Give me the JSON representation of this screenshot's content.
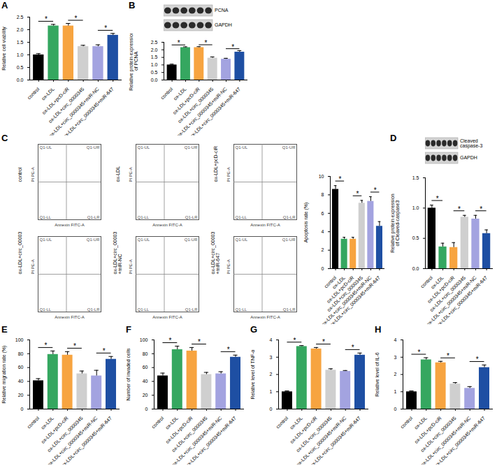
{
  "chart_data": [
    {
      "type": "bar",
      "title": "A",
      "categories": [
        "control",
        "ox-LDL",
        "ox-LDL+pcD-ciR",
        "ox-LDL+circ_0000345",
        "ox-LDL+circ_0000345+miR-NC",
        "ox-LDL+circ_0000345+miR-647"
      ],
      "values": [
        1.0,
        2.15,
        2.15,
        1.33,
        1.33,
        1.78
      ],
      "errors": [
        0.05,
        0.06,
        0.1,
        0.05,
        0.07,
        0.07
      ],
      "colors": [
        "#000000",
        "#35a760",
        "#f7a440",
        "#cfcfcf",
        "#a3a3e0",
        "#1e4fa3"
      ],
      "ylabel": "Relative cell viability",
      "ylim": [
        0,
        2.5
      ],
      "yticks": [
        {
          "value": 0,
          "label": "0.0"
        },
        0.5,
        {
          "value": 1,
          "label": "1.0"
        },
        1.5,
        {
          "value": 2,
          "label": "2.0"
        },
        2.5
      ],
      "annotations": [
        {
          "from": "control",
          "to": "ox-LDL",
          "label": "*"
        },
        {
          "from": "ox-LDL+pcD-ciR",
          "to": "ox-LDL+circ_0000345",
          "label": "*"
        },
        {
          "from": "ox-LDL+circ_0000345+miR-NC",
          "to": "ox-LDL+circ_0000345+miR-647",
          "label": "*"
        }
      ]
    },
    {
      "type": "bar",
      "title": "B",
      "blot": {
        "bands": [
          "PCNA",
          "GAPDH"
        ]
      },
      "categories": [
        "control",
        "ox-LDL",
        "ox-LDL+pcD-ciR",
        "ox-LDL+circ_0000345",
        "ox-LDL+circ_0000345+miR-NC",
        "ox-LDL+circ_0000345+miR-647"
      ],
      "values": [
        1.0,
        2.15,
        2.15,
        1.45,
        1.38,
        1.85
      ],
      "errors": [
        0.05,
        0.05,
        0.06,
        0.08,
        0.06,
        0.1
      ],
      "colors": [
        "#000000",
        "#35a760",
        "#f7a440",
        "#cfcfcf",
        "#a3a3e0",
        "#1e4fa3"
      ],
      "ylabel": "Relative protein expression\nof PCNA",
      "ylim": [
        0,
        2.5
      ],
      "yticks": [
        {
          "value": 0,
          "label": "0.0"
        },
        0.5,
        {
          "value": 1,
          "label": "1.0"
        },
        1.5,
        {
          "value": 2,
          "label": "2.0"
        },
        2.5
      ],
      "annotations": [
        {
          "from": "control",
          "to": "ox-LDL",
          "label": "*"
        },
        {
          "from": "ox-LDL+pcD-ciR",
          "to": "ox-LDL+circ_0000345",
          "label": "*"
        },
        {
          "from": "ox-LDL+circ_0000345+miR-NC",
          "to": "ox-LDL+circ_0000345+miR-647",
          "label": "*"
        }
      ]
    },
    {
      "type": "flow_cytometry",
      "title": "C",
      "panels": [
        "control",
        "ox-LDL",
        "ox-LDL+pcD-ciR",
        "ox-LDL+circ_0000345",
        "ox-LDL+circ_0000345\n+miR-NC",
        "ox-LDL+circ_0000345\n+miR-647"
      ],
      "xlabel": "Annexin FITC-A",
      "ylabel": "PI PE-A",
      "quadrants": {
        "UL": "Q1-UL",
        "UR": "Q1-UR",
        "LL": "Q1-LL",
        "LR": "Q1-LR"
      },
      "tick_labels": false
    },
    {
      "type": "bar",
      "categories": [
        "control",
        "ox-LDL",
        "ox-LDL+pcD-ciR",
        "ox-LDL+circ_0000345",
        "ox-LDL+circ_0000345+miR-NC",
        "ox-LDL+circ_0000345+miR-647"
      ],
      "values": [
        8.6,
        3.2,
        3.2,
        7.1,
        7.3,
        4.6
      ],
      "errors": [
        0.4,
        0.2,
        0.2,
        0.3,
        0.5,
        0.5
      ],
      "colors": [
        "#000000",
        "#35a760",
        "#f7a440",
        "#cfcfcf",
        "#a3a3e0",
        "#1e4fa3"
      ],
      "ylabel": "Apoptosis rate (%)",
      "ylim": [
        0,
        10
      ],
      "yticks": [
        0,
        2,
        4,
        6,
        8,
        10
      ],
      "annotations": [
        {
          "from": "control",
          "to": "ox-LDL",
          "label": "*"
        },
        {
          "from": "ox-LDL+pcD-ciR",
          "to": "ox-LDL+circ_0000345",
          "label": "*"
        },
        {
          "from": "ox-LDL+circ_0000345+miR-NC",
          "to": "ox-LDL+circ_0000345+miR-647",
          "label": "*"
        }
      ]
    },
    {
      "type": "bar",
      "title": "D",
      "blot": {
        "bands": [
          "Cleaved\ncaspase-3",
          "GAPDH"
        ]
      },
      "categories": [
        "control",
        "ox-LDL",
        "ox-LDL+pcD-ciR",
        "ox-LDL+circ_0000345",
        "ox-LDL+circ_0000345+miR-NC",
        "ox-LDL+circ_0000345+miR-647"
      ],
      "values": [
        1.0,
        0.36,
        0.35,
        0.85,
        0.82,
        0.58
      ],
      "errors": [
        0.05,
        0.06,
        0.08,
        0.03,
        0.06,
        0.06
      ],
      "colors": [
        "#000000",
        "#35a760",
        "#f7a440",
        "#cfcfcf",
        "#a3a3e0",
        "#1e4fa3"
      ],
      "ylabel": "Relative protein expression\nof Cleaved-caspase3",
      "ylim": [
        0,
        1.5
      ],
      "yticks": [
        {
          "value": 0,
          "label": "0.0"
        },
        0.5,
        {
          "value": 1,
          "label": "1.0"
        },
        1.5
      ],
      "annotations": [
        {
          "from": "control",
          "to": "ox-LDL",
          "label": "*"
        },
        {
          "from": "ox-LDL+pcD-ciR",
          "to": "ox-LDL+circ_0000345",
          "label": "*"
        },
        {
          "from": "ox-LDL+circ_0000345+miR-NC",
          "to": "ox-LDL+circ_0000345+miR-647",
          "label": "*"
        }
      ]
    },
    {
      "type": "bar",
      "title": "E",
      "categories": [
        "control",
        "ox-LDL",
        "ox-LDL+pcD-ciR",
        "ox-LDL+circ_0000345",
        "ox-LDL+circ_0000345+miR-NC",
        "ox-LDL+circ_0000345+miR-647"
      ],
      "values": [
        41,
        79,
        78,
        51,
        48,
        72
      ],
      "errors": [
        3,
        5,
        5,
        4,
        8,
        4
      ],
      "colors": [
        "#000000",
        "#35a760",
        "#f7a440",
        "#cfcfcf",
        "#a3a3e0",
        "#1e4fa3"
      ],
      "ylabel": "Relative migration rate (%)",
      "ylim": [
        0,
        100
      ],
      "yticks": [
        0,
        20,
        40,
        60,
        80,
        100
      ],
      "annotations": [
        {
          "from": "control",
          "to": "ox-LDL",
          "label": "*"
        },
        {
          "from": "ox-LDL+pcD-ciR",
          "to": "ox-LDL+circ_0000345",
          "label": "*"
        },
        {
          "from": "ox-LDL+circ_0000345+miR-NC",
          "to": "ox-LDL+circ_0000345+miR-647",
          "label": "*"
        }
      ]
    },
    {
      "type": "bar",
      "title": "F",
      "categories": [
        "control",
        "ox-LDL",
        "ox-LDL+pcD-ciR",
        "ox-LDL+circ_0000345",
        "ox-LDL+circ_0000345+miR-NC",
        "ox-LDL+circ_0000345+miR-647"
      ],
      "values": [
        48,
        86,
        84,
        50,
        51,
        75
      ],
      "errors": [
        4,
        5,
        5,
        3,
        3,
        3
      ],
      "colors": [
        "#000000",
        "#35a760",
        "#f7a440",
        "#cfcfcf",
        "#a3a3e0",
        "#1e4fa3"
      ],
      "ylabel": "Number of invaded cells",
      "ylim": [
        0,
        100
      ],
      "yticks": [
        0,
        20,
        40,
        60,
        80,
        100
      ],
      "annotations": [
        {
          "from": "control",
          "to": "ox-LDL",
          "label": "*"
        },
        {
          "from": "ox-LDL+pcD-ciR",
          "to": "ox-LDL+circ_0000345",
          "label": "*"
        },
        {
          "from": "ox-LDL+circ_0000345+miR-NC",
          "to": "ox-LDL+circ_0000345+miR-647",
          "label": "*"
        }
      ]
    },
    {
      "type": "bar",
      "title": "G",
      "categories": [
        "control",
        "ox-LDL",
        "ox-LDL+pcD-ciR",
        "ox-LDL+circ_0000345",
        "ox-LDL+circ_0000345+miR-NC",
        "ox-LDL+circ_0000345+miR-647"
      ],
      "values": [
        1.0,
        3.62,
        3.48,
        2.25,
        2.18,
        3.12
      ],
      "errors": [
        0.05,
        0.05,
        0.08,
        0.08,
        0.05,
        0.12
      ],
      "colors": [
        "#000000",
        "#35a760",
        "#f7a440",
        "#cfcfcf",
        "#a3a3e0",
        "#1e4fa3"
      ],
      "ylabel": "Relative level of TNF-α",
      "ylim": [
        0,
        4
      ],
      "yticks": [
        0,
        1,
        2,
        3,
        4
      ],
      "annotations": [
        {
          "from": "control",
          "to": "ox-LDL",
          "label": "*"
        },
        {
          "from": "ox-LDL+pcD-ciR",
          "to": "ox-LDL+circ_0000345",
          "label": "*"
        },
        {
          "from": "ox-LDL+circ_0000345+miR-NC",
          "to": "ox-LDL+circ_0000345+miR-647",
          "label": "*"
        }
      ]
    },
    {
      "type": "bar",
      "title": "H",
      "categories": [
        "control",
        "ox-LDL",
        "ox-LDL+pcD-ciR",
        "ox-LDL+circ_0000345",
        "ox-LDL+circ_0000345+miR-NC",
        "ox-LDL+circ_0000345+miR-647"
      ],
      "values": [
        1.0,
        2.85,
        2.68,
        1.45,
        1.2,
        2.4
      ],
      "errors": [
        0.05,
        0.12,
        0.08,
        0.08,
        0.1,
        0.15
      ],
      "colors": [
        "#000000",
        "#35a760",
        "#f7a440",
        "#cfcfcf",
        "#a3a3e0",
        "#1e4fa3"
      ],
      "ylabel": "Relative level of IL-6",
      "ylim": [
        0,
        4
      ],
      "yticks": [
        0,
        1,
        2,
        3,
        4
      ],
      "annotations": [
        {
          "from": "control",
          "to": "ox-LDL",
          "label": "*"
        },
        {
          "from": "ox-LDL+pcD-ciR",
          "to": "ox-LDL+circ_0000345",
          "label": "*"
        },
        {
          "from": "ox-LDL+circ_0000345+miR-NC",
          "to": "ox-LDL+circ_0000345+miR-647",
          "label": "*"
        }
      ]
    }
  ]
}
